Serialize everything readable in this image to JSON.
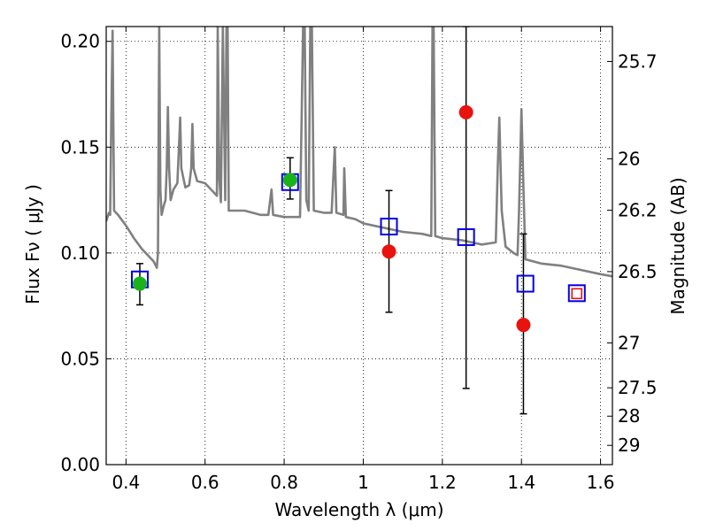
{
  "chart_data": {
    "type": "scatter",
    "xlabel": "Wavelength  λ (μm)",
    "ylabel": "Flux  Fν  ( μJy )",
    "y2label": "Magnitude (AB)",
    "xlim": [
      0.35,
      1.63
    ],
    "ylim": [
      0.0,
      0.207
    ],
    "grid": true,
    "x_ticks": [
      0.4,
      0.6,
      0.8,
      1.0,
      1.2,
      1.4,
      1.6
    ],
    "x_tick_labels": [
      "0.4",
      "0.6",
      "0.8",
      "1",
      "1.2",
      "1.4",
      "1.6"
    ],
    "y_ticks": [
      0.0,
      0.05,
      0.1,
      0.15,
      0.2
    ],
    "y_tick_labels": [
      "0.00",
      "0.05",
      "0.10",
      "0.15",
      "0.20"
    ],
    "y2_ticks": [
      {
        "label": "25.7",
        "flux": 0.1905
      },
      {
        "label": "26",
        "flux": 0.1445
      },
      {
        "label": "26.2",
        "flux": 0.1202
      },
      {
        "label": "26.5",
        "flux": 0.0912
      },
      {
        "label": "27",
        "flux": 0.0575
      },
      {
        "label": "27.5",
        "flux": 0.0363
      },
      {
        "label": "28",
        "flux": 0.0229
      },
      {
        "label": "29",
        "flux": 0.0091
      }
    ],
    "colors": {
      "model": "#808080",
      "green": "#1ab31a",
      "red": "#e8130f",
      "blue": "#0000e6",
      "errorbar": "#000000"
    },
    "model_spectrum": [
      [
        0.35,
        0.115
      ],
      [
        0.357,
        0.119
      ],
      [
        0.36,
        0.118
      ],
      [
        0.363,
        0.165
      ],
      [
        0.366,
        0.205
      ],
      [
        0.368,
        0.165
      ],
      [
        0.37,
        0.12
      ],
      [
        0.38,
        0.118
      ],
      [
        0.4,
        0.113
      ],
      [
        0.42,
        0.107
      ],
      [
        0.44,
        0.102
      ],
      [
        0.46,
        0.098
      ],
      [
        0.47,
        0.096
      ],
      [
        0.478,
        0.093
      ],
      [
        0.481,
        0.1
      ],
      [
        0.484,
        0.207
      ],
      [
        0.487,
        0.13
      ],
      [
        0.49,
        0.118
      ],
      [
        0.495,
        0.122
      ],
      [
        0.5,
        0.125
      ],
      [
        0.503,
        0.14
      ],
      [
        0.506,
        0.169
      ],
      [
        0.509,
        0.14
      ],
      [
        0.513,
        0.125
      ],
      [
        0.52,
        0.13
      ],
      [
        0.53,
        0.133
      ],
      [
        0.534,
        0.15
      ],
      [
        0.537,
        0.164
      ],
      [
        0.54,
        0.14
      ],
      [
        0.55,
        0.131
      ],
      [
        0.56,
        0.132
      ],
      [
        0.565,
        0.14
      ],
      [
        0.568,
        0.161
      ],
      [
        0.571,
        0.14
      ],
      [
        0.58,
        0.134
      ],
      [
        0.6,
        0.133
      ],
      [
        0.62,
        0.129
      ],
      [
        0.63,
        0.127
      ],
      [
        0.632,
        0.207
      ],
      [
        0.636,
        0.135
      ],
      [
        0.64,
        0.124
      ],
      [
        0.645,
        0.207
      ],
      [
        0.651,
        0.125
      ],
      [
        0.654,
        0.207
      ],
      [
        0.657,
        0.207
      ],
      [
        0.66,
        0.12
      ],
      [
        0.68,
        0.12
      ],
      [
        0.7,
        0.12
      ],
      [
        0.72,
        0.119
      ],
      [
        0.74,
        0.118
      ],
      [
        0.76,
        0.118
      ],
      [
        0.768,
        0.13
      ],
      [
        0.772,
        0.118
      ],
      [
        0.8,
        0.117
      ],
      [
        0.82,
        0.117
      ],
      [
        0.84,
        0.117
      ],
      [
        0.848,
        0.207
      ],
      [
        0.852,
        0.207
      ],
      [
        0.856,
        0.125
      ],
      [
        0.862,
        0.12
      ],
      [
        0.866,
        0.207
      ],
      [
        0.87,
        0.207
      ],
      [
        0.875,
        0.12
      ],
      [
        0.9,
        0.119
      ],
      [
        0.92,
        0.119
      ],
      [
        0.928,
        0.15
      ],
      [
        0.932,
        0.119
      ],
      [
        0.95,
        0.118
      ],
      [
        0.952,
        0.14
      ],
      [
        0.956,
        0.117
      ],
      [
        0.98,
        0.116
      ],
      [
        1.0,
        0.114
      ],
      [
        1.05,
        0.112
      ],
      [
        1.1,
        0.11
      ],
      [
        1.15,
        0.109
      ],
      [
        1.172,
        0.108
      ],
      [
        1.175,
        0.207
      ],
      [
        1.178,
        0.207
      ],
      [
        1.182,
        0.108
      ],
      [
        1.2,
        0.107
      ],
      [
        1.25,
        0.106
      ],
      [
        1.3,
        0.104
      ],
      [
        1.335,
        0.105
      ],
      [
        1.34,
        0.14
      ],
      [
        1.344,
        0.164
      ],
      [
        1.35,
        0.12
      ],
      [
        1.36,
        0.103
      ],
      [
        1.38,
        0.1
      ],
      [
        1.39,
        0.099
      ],
      [
        1.394,
        0.12
      ],
      [
        1.4,
        0.168
      ],
      [
        1.405,
        0.13
      ],
      [
        1.41,
        0.097
      ],
      [
        1.43,
        0.096
      ],
      [
        1.45,
        0.095
      ],
      [
        1.5,
        0.094
      ],
      [
        1.55,
        0.092
      ],
      [
        1.6,
        0.09
      ],
      [
        1.63,
        0.089
      ]
    ],
    "series": [
      {
        "marker": "circle-green",
        "points": [
          {
            "x": 0.435,
            "y": 0.0855,
            "yerr_low": 0.0755,
            "yerr_high": 0.095
          },
          {
            "x": 0.815,
            "y": 0.1345,
            "yerr_low": 0.1255,
            "yerr_high": 0.145
          }
        ]
      },
      {
        "marker": "circle-red",
        "points": [
          {
            "x": 1.065,
            "y": 0.1007,
            "yerr_low": 0.072,
            "yerr_high": 0.1295
          },
          {
            "x": 1.26,
            "y": 0.1665,
            "yerr_low": 0.036,
            "yerr_high": 0.207
          },
          {
            "x": 1.405,
            "y": 0.066,
            "yerr_low": 0.024,
            "yerr_high": 0.109
          }
        ]
      },
      {
        "marker": "square-blue",
        "points": [
          {
            "x": 0.435,
            "y": 0.0875
          },
          {
            "x": 0.815,
            "y": 0.1335
          },
          {
            "x": 1.065,
            "y": 0.1125
          },
          {
            "x": 1.26,
            "y": 0.1075
          },
          {
            "x": 1.41,
            "y": 0.0855
          },
          {
            "x": 1.54,
            "y": 0.081
          }
        ]
      },
      {
        "marker": "square-red",
        "points": [
          {
            "x": 1.54,
            "y": 0.0808
          }
        ]
      }
    ]
  }
}
